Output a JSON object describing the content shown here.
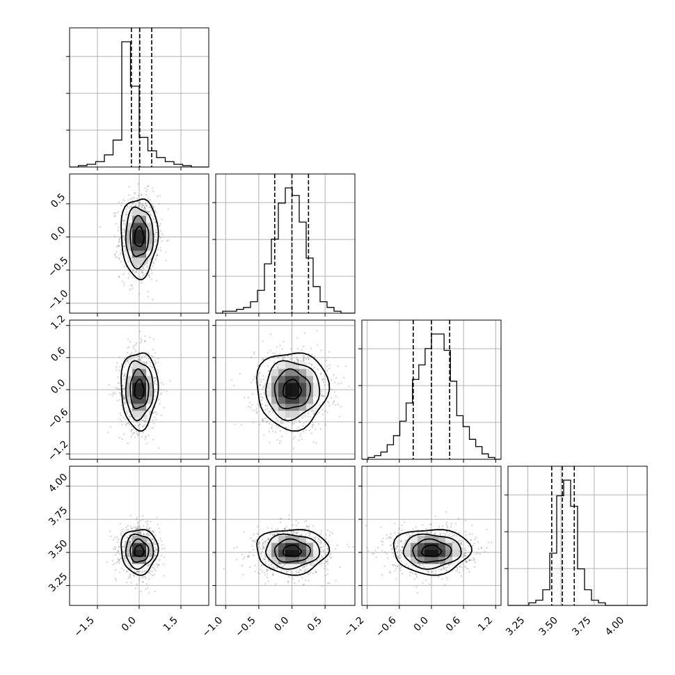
{
  "chart_data": {
    "type": "corner",
    "n_params": 4,
    "grid": true,
    "params": [
      {
        "range": [
          -2.5,
          2.5
        ],
        "ticks": [
          -1.5,
          0.0,
          1.5
        ],
        "tick_labels": [
          "−1.5",
          "0.0",
          "1.5"
        ],
        "quantiles": [
          -0.28,
          0.02,
          0.45
        ]
      },
      {
        "range": [
          -1.15,
          0.95
        ],
        "ticks": [
          -1.0,
          -0.5,
          0.0,
          0.5
        ],
        "tick_labels": [
          "−1.0",
          "−0.5",
          "0.0",
          "0.5"
        ],
        "quantiles": [
          -0.26,
          0.0,
          0.25
        ]
      },
      {
        "range": [
          -1.3,
          1.3
        ],
        "ticks": [
          -1.2,
          -0.6,
          0.0,
          0.6,
          1.2
        ],
        "tick_labels": [
          "−1.2",
          "−0.6",
          "0.0",
          "0.6",
          "1.2"
        ],
        "quantiles": [
          -0.34,
          0.0,
          0.34
        ]
      },
      {
        "range": [
          3.1,
          4.15
        ],
        "ticks": [
          3.25,
          3.5,
          3.75,
          4.0
        ],
        "tick_labels": [
          "3.25",
          "3.50",
          "3.75",
          "4.00"
        ],
        "quantiles": [
          3.43,
          3.51,
          3.6
        ]
      }
    ],
    "histograms": [
      {
        "edges_range": [
          -2.5,
          2.5
        ],
        "counts": [
          0,
          1,
          2,
          4,
          9,
          20,
          93,
          60,
          22,
          12,
          7,
          4,
          2,
          1,
          0,
          0
        ]
      },
      {
        "edges_range": [
          -1.15,
          0.95
        ],
        "counts": [
          0,
          1,
          1,
          2,
          3,
          6,
          12,
          26,
          39,
          58,
          66,
          62,
          48,
          29,
          14,
          6,
          3,
          1,
          0,
          0
        ]
      },
      {
        "edges_range": [
          -1.3,
          1.3
        ],
        "counts": [
          0,
          1,
          2,
          4,
          8,
          13,
          21,
          31,
          44,
          52,
          61,
          69,
          69,
          60,
          43,
          24,
          18,
          11,
          7,
          3,
          1,
          0
        ]
      },
      {
        "edges_range": [
          3.1,
          4.15
        ],
        "counts": [
          0,
          0,
          0,
          1,
          2,
          6,
          20,
          42,
          48,
          38,
          14,
          6,
          2,
          1,
          0,
          0,
          0,
          0,
          0,
          0
        ]
      }
    ],
    "pairs": [
      {
        "x": 0,
        "y": 1,
        "cx": 0.0,
        "cy": 0.0,
        "sx": 0.33,
        "sy": 0.3,
        "rho": 0.0
      },
      {
        "x": 0,
        "y": 2,
        "cx": 0.0,
        "cy": 0.0,
        "sx": 0.33,
        "sy": 0.36,
        "rho": 0.0
      },
      {
        "x": 1,
        "y": 2,
        "cx": 0.0,
        "cy": 0.0,
        "sx": 0.27,
        "sy": 0.36,
        "rho": 0.0
      },
      {
        "x": 0,
        "y": 3,
        "cx": 0.0,
        "cy": 3.51,
        "sx": 0.33,
        "sy": 0.085,
        "rho": 0.0
      },
      {
        "x": 1,
        "y": 3,
        "cx": 0.0,
        "cy": 3.51,
        "sx": 0.27,
        "sy": 0.085,
        "rho": 0.0
      },
      {
        "x": 2,
        "y": 3,
        "cx": 0.0,
        "cy": 3.51,
        "sx": 0.36,
        "sy": 0.085,
        "rho": 0.0
      }
    ],
    "contour_levels_sigma": [
      0.5,
      1.0,
      1.5,
      2.0
    ]
  }
}
